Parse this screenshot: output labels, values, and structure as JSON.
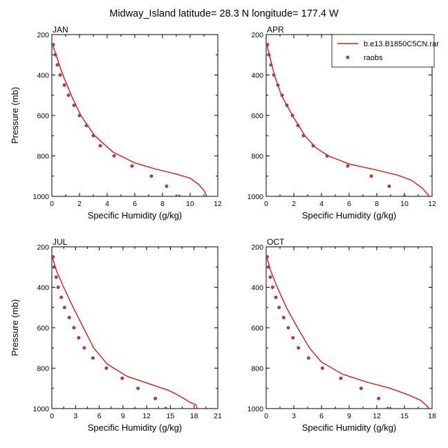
{
  "page": {
    "title": "Midway_Island  latitude= 28.3 N longitude= 177.4 W"
  },
  "legend": {
    "items": [
      {
        "label": "b.e13.B1850C5CN.rar",
        "marker": "line",
        "color": "#e8140c"
      },
      {
        "label": "raobs",
        "marker": "dot",
        "color": "#b5335a"
      }
    ],
    "placement": "top-right"
  },
  "colors": {
    "model": "#e8140c",
    "obs": "#b5335a"
  },
  "chart_data": [
    {
      "type": "line",
      "title": "JAN",
      "xlabel": "Specific Humidity (g/kg)",
      "ylabel": "Pressure (mb)",
      "xlim": [
        0,
        12
      ],
      "ylim": [
        1000,
        200
      ],
      "xticks": [
        "0",
        "2",
        "4",
        "6",
        "8",
        "10",
        "12"
      ],
      "yticks": [
        "200",
        "400",
        "600",
        "800",
        "1000"
      ],
      "series": [
        {
          "name": "b.e13.B1850C5CN.rar",
          "style": "line",
          "points": [
            [
              0.05,
              250
            ],
            [
              0.4,
              320
            ],
            [
              0.8,
              400
            ],
            [
              1.4,
              500
            ],
            [
              2.1,
              600
            ],
            [
              3.1,
              700
            ],
            [
              4.4,
              780
            ],
            [
              6.0,
              835
            ],
            [
              7.5,
              865
            ],
            [
              9.0,
              890
            ],
            [
              10.0,
              910
            ],
            [
              10.6,
              940
            ],
            [
              11.0,
              970
            ],
            [
              11.2,
              1000
            ]
          ]
        },
        {
          "name": "raobs",
          "style": "dot",
          "points": [
            [
              0.1,
              250
            ],
            [
              0.25,
              300
            ],
            [
              0.4,
              350
            ],
            [
              0.6,
              400
            ],
            [
              0.9,
              450
            ],
            [
              1.2,
              500
            ],
            [
              1.6,
              550
            ],
            [
              2.0,
              600
            ],
            [
              2.5,
              650
            ],
            [
              3.0,
              700
            ],
            [
              3.5,
              750
            ],
            [
              4.5,
              800
            ],
            [
              5.8,
              850
            ],
            [
              7.2,
              900
            ],
            [
              8.3,
              950
            ],
            [
              9.2,
              1000
            ]
          ]
        }
      ]
    },
    {
      "type": "line",
      "title": "APR",
      "xlabel": "Specific Humidity (g/kg)",
      "ylabel": "",
      "xlim": [
        0,
        12
      ],
      "ylim": [
        1000,
        200
      ],
      "xticks": [
        "0",
        "2",
        "4",
        "6",
        "8",
        "10",
        "12"
      ],
      "yticks": [
        "200",
        "400",
        "600",
        "800",
        "1000"
      ],
      "series": [
        {
          "name": "b.e13.B1850C5CN.rar",
          "style": "line",
          "points": [
            [
              0.05,
              250
            ],
            [
              0.3,
              320
            ],
            [
              0.6,
              400
            ],
            [
              1.1,
              500
            ],
            [
              1.9,
              600
            ],
            [
              2.8,
              700
            ],
            [
              3.6,
              760
            ],
            [
              4.5,
              800
            ],
            [
              6.0,
              840
            ],
            [
              8.0,
              870
            ],
            [
              9.5,
              895
            ],
            [
              10.5,
              920
            ],
            [
              11.3,
              960
            ],
            [
              11.8,
              1000
            ]
          ]
        },
        {
          "name": "raobs",
          "style": "dot",
          "points": [
            [
              0.1,
              250
            ],
            [
              0.2,
              300
            ],
            [
              0.35,
              350
            ],
            [
              0.55,
              400
            ],
            [
              0.85,
              450
            ],
            [
              1.15,
              500
            ],
            [
              1.5,
              550
            ],
            [
              1.9,
              600
            ],
            [
              2.3,
              650
            ],
            [
              2.7,
              700
            ],
            [
              3.4,
              750
            ],
            [
              4.4,
              800
            ],
            [
              5.9,
              850
            ],
            [
              7.6,
              900
            ],
            [
              8.9,
              950
            ],
            [
              10.0,
              1000
            ]
          ]
        }
      ]
    },
    {
      "type": "line",
      "title": "JUL",
      "xlabel": "Specific Humidity (g/kg)",
      "ylabel": "Pressure (mb)",
      "xlim": [
        0,
        21
      ],
      "ylim": [
        1000,
        200
      ],
      "xticks": [
        "0",
        "3",
        "6",
        "9",
        "12",
        "15",
        "18",
        "21"
      ],
      "yticks": [
        "200",
        "400",
        "600",
        "800",
        "1000"
      ],
      "series": [
        {
          "name": "b.e13.B1850C5CN.rar",
          "style": "line",
          "points": [
            [
              0.05,
              250
            ],
            [
              0.6,
              320
            ],
            [
              1.5,
              400
            ],
            [
              2.7,
              500
            ],
            [
              4.0,
              600
            ],
            [
              5.3,
              700
            ],
            [
              7.0,
              780
            ],
            [
              9.5,
              840
            ],
            [
              12.5,
              880
            ],
            [
              14.8,
              910
            ],
            [
              16.3,
              940
            ],
            [
              17.5,
              970
            ],
            [
              18.2,
              980
            ],
            [
              18.4,
              1000
            ]
          ]
        },
        {
          "name": "raobs",
          "style": "dot",
          "points": [
            [
              0.15,
              250
            ],
            [
              0.3,
              300
            ],
            [
              0.55,
              350
            ],
            [
              0.8,
              400
            ],
            [
              1.2,
              450
            ],
            [
              1.6,
              500
            ],
            [
              2.2,
              550
            ],
            [
              2.8,
              600
            ],
            [
              3.4,
              650
            ],
            [
              4.1,
              700
            ],
            [
              5.2,
              750
            ],
            [
              6.9,
              800
            ],
            [
              8.9,
              850
            ],
            [
              10.9,
              900
            ],
            [
              13.1,
              950
            ],
            [
              14.4,
              1000
            ]
          ]
        }
      ]
    },
    {
      "type": "line",
      "title": "OCT",
      "xlabel": "Specific Humidity (g/kg)",
      "ylabel": "",
      "xlim": [
        0,
        18
      ],
      "ylim": [
        1000,
        200
      ],
      "xticks": [
        "0",
        "3",
        "6",
        "9",
        "12",
        "15",
        "18"
      ],
      "yticks": [
        "200",
        "400",
        "600",
        "800",
        "1000"
      ],
      "series": [
        {
          "name": "b.e13.B1850C5CN.rar",
          "style": "line",
          "points": [
            [
              0.05,
              250
            ],
            [
              0.5,
              320
            ],
            [
              1.2,
              400
            ],
            [
              2.2,
              500
            ],
            [
              3.4,
              600
            ],
            [
              4.7,
              700
            ],
            [
              6.0,
              770
            ],
            [
              8.3,
              830
            ],
            [
              11.0,
              870
            ],
            [
              13.5,
              900
            ],
            [
              15.3,
              930
            ],
            [
              16.8,
              960
            ],
            [
              17.5,
              990
            ],
            [
              17.7,
              1000
            ]
          ]
        },
        {
          "name": "raobs",
          "style": "dot",
          "points": [
            [
              0.1,
              250
            ],
            [
              0.25,
              300
            ],
            [
              0.45,
              350
            ],
            [
              0.7,
              400
            ],
            [
              1.05,
              450
            ],
            [
              1.4,
              500
            ],
            [
              1.9,
              550
            ],
            [
              2.4,
              600
            ],
            [
              2.9,
              650
            ],
            [
              3.5,
              700
            ],
            [
              4.6,
              750
            ],
            [
              6.1,
              800
            ],
            [
              8.1,
              850
            ],
            [
              10.3,
              900
            ],
            [
              12.2,
              950
            ],
            [
              13.2,
              1000
            ]
          ]
        }
      ]
    }
  ]
}
